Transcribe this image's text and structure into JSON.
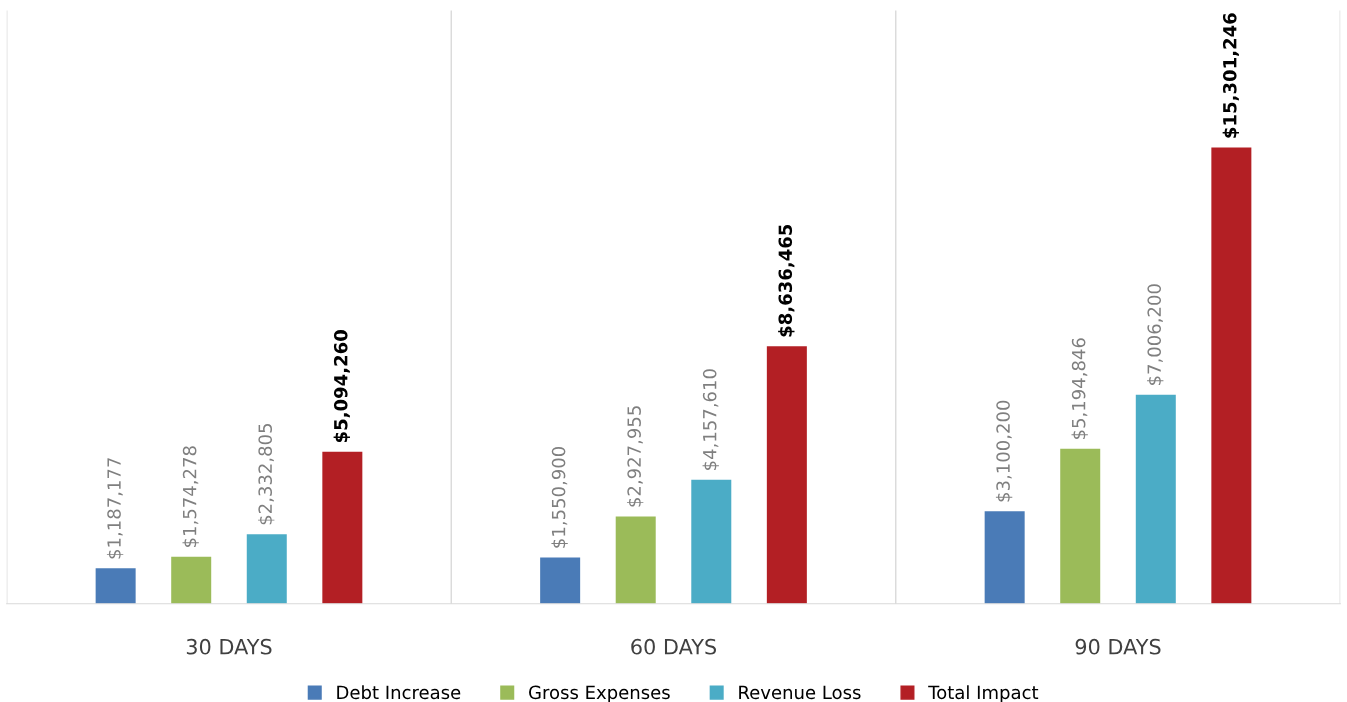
{
  "chart_data": {
    "type": "bar",
    "categories": [
      "30 DAYS",
      "60 DAYS",
      "90 DAYS"
    ],
    "series": [
      {
        "name": "Debt Increase",
        "color": "#4a7bb7",
        "values": [
          1187177,
          1550900,
          3100200
        ],
        "value_labels": [
          "$1,187,177",
          "$1,550,900",
          "$3,100,200"
        ]
      },
      {
        "name": "Gross Expenses",
        "color": "#9bbb59",
        "values": [
          1574278,
          2927955,
          5194846
        ],
        "value_labels": [
          "$1,574,278",
          "$2,927,955",
          "$5,194,846"
        ]
      },
      {
        "name": "Revenue Loss",
        "color": "#4bacc6",
        "values": [
          2332805,
          4157610,
          7006200
        ],
        "value_labels": [
          "$2,332,805",
          "$4,157,610",
          "$7,006,200"
        ]
      },
      {
        "name": "Total Impact",
        "color": "#b31f24",
        "values": [
          5094260,
          8636465,
          15301246
        ],
        "value_labels": [
          "$5,094,260",
          "$8,636,465",
          "$15,301,246"
        ]
      }
    ],
    "legend": "bottom",
    "grid": false
  }
}
